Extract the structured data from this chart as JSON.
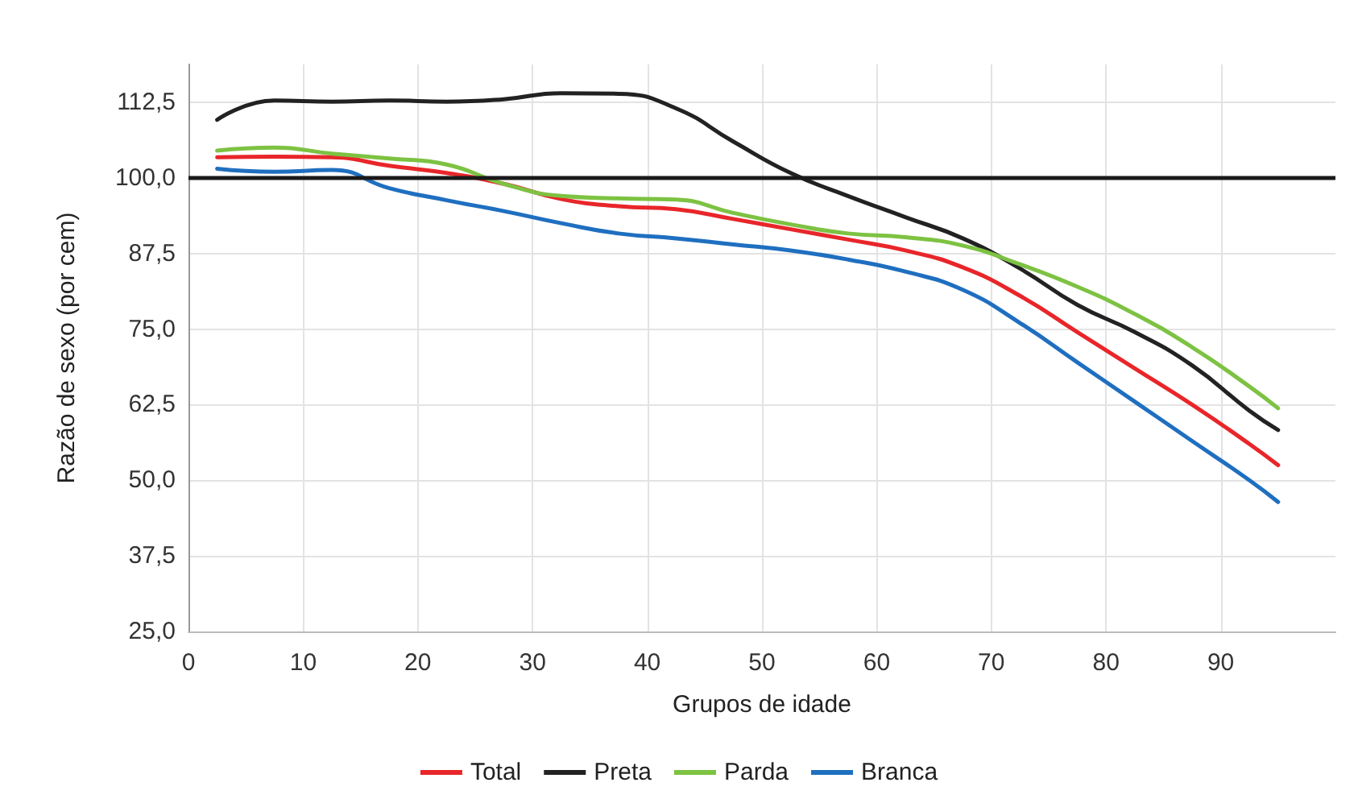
{
  "chart_data": {
    "type": "line",
    "xlabel": "Grupos de idade",
    "ylabel": "Razão de sexo (por cem)",
    "x": [
      2.5,
      7.5,
      12.5,
      17.5,
      22.5,
      27.5,
      32.5,
      37.5,
      42.5,
      47.5,
      52.5,
      57.5,
      62.5,
      67.5,
      72.5,
      77.5,
      82.5,
      87.5,
      92.5,
      95
    ],
    "series": [
      {
        "name": "Total",
        "color": "#e8262a",
        "values": [
          103.4,
          103.5,
          103.4,
          102,
          100.8,
          99,
          96.5,
          95.3,
          94.8,
          93.2,
          91.5,
          89.8,
          88,
          85.2,
          80.5,
          74.5,
          68.5,
          62.5,
          56,
          52.5
        ]
      },
      {
        "name": "Preta",
        "color": "#222222",
        "values": [
          109.6,
          112.8,
          112.6,
          112.8,
          112.6,
          113,
          114,
          113.9,
          111.5,
          106,
          100.8,
          97,
          93.5,
          90,
          85,
          79,
          74.5,
          69,
          61.5,
          58.3
        ]
      },
      {
        "name": "Parda",
        "color": "#7dc242",
        "values": [
          104.5,
          105,
          104,
          103.2,
          102.2,
          99,
          97,
          96.6,
          96.4,
          94.2,
          92.3,
          90.8,
          90.2,
          88.8,
          85.7,
          82,
          77.5,
          72,
          65.5,
          61.9
        ]
      },
      {
        "name": "Branca",
        "color": "#1f6fc0",
        "values": [
          101.5,
          101,
          101.3,
          98.3,
          96.3,
          94.5,
          92.5,
          90.8,
          90,
          89,
          88,
          86.5,
          84.5,
          81.5,
          76,
          69.5,
          63,
          56.5,
          50,
          46.4
        ]
      }
    ],
    "xlim": [
      0,
      100
    ],
    "xticks": [
      0,
      10,
      20,
      30,
      40,
      50,
      60,
      70,
      80,
      90
    ],
    "ylim": [
      25,
      118.75
    ],
    "yticks": [
      {
        "value": 25,
        "label": "25,0"
      },
      {
        "value": 37.5,
        "label": "37,5"
      },
      {
        "value": 50,
        "label": "50,0"
      },
      {
        "value": 62.5,
        "label": "62,5"
      },
      {
        "value": 75,
        "label": "75,0"
      },
      {
        "value": 87.5,
        "label": "87,5"
      },
      {
        "value": 100,
        "label": "100,0"
      },
      {
        "value": 112.5,
        "label": "112,5"
      }
    ],
    "ref_lines": [
      {
        "axis": "y",
        "value": 100,
        "color": "#1a1a1a"
      }
    ],
    "grid": true,
    "legend": "bottom",
    "marker": "none",
    "line_style": "solid"
  }
}
